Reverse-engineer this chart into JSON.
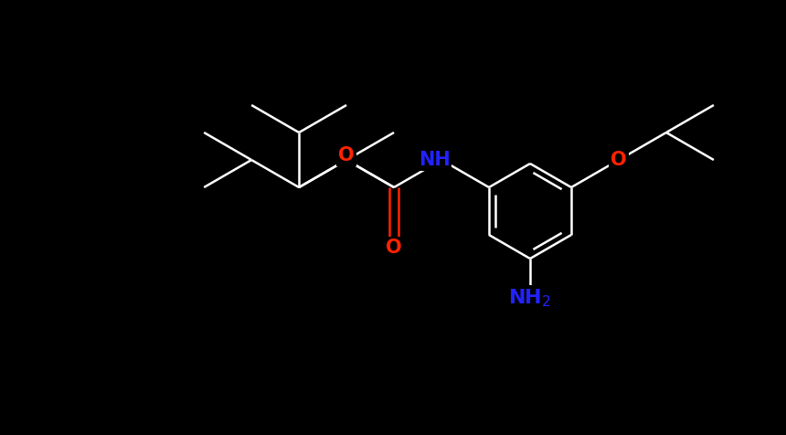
{
  "background_color": "#000000",
  "bond_color": "#ffffff",
  "atom_colors": {
    "O": "#ff2200",
    "N": "#2222ff",
    "C": "#ffffff"
  },
  "figsize": [
    8.6,
    4.76
  ],
  "dpi": 100,
  "bond_lw": 1.8,
  "font_size": 15
}
